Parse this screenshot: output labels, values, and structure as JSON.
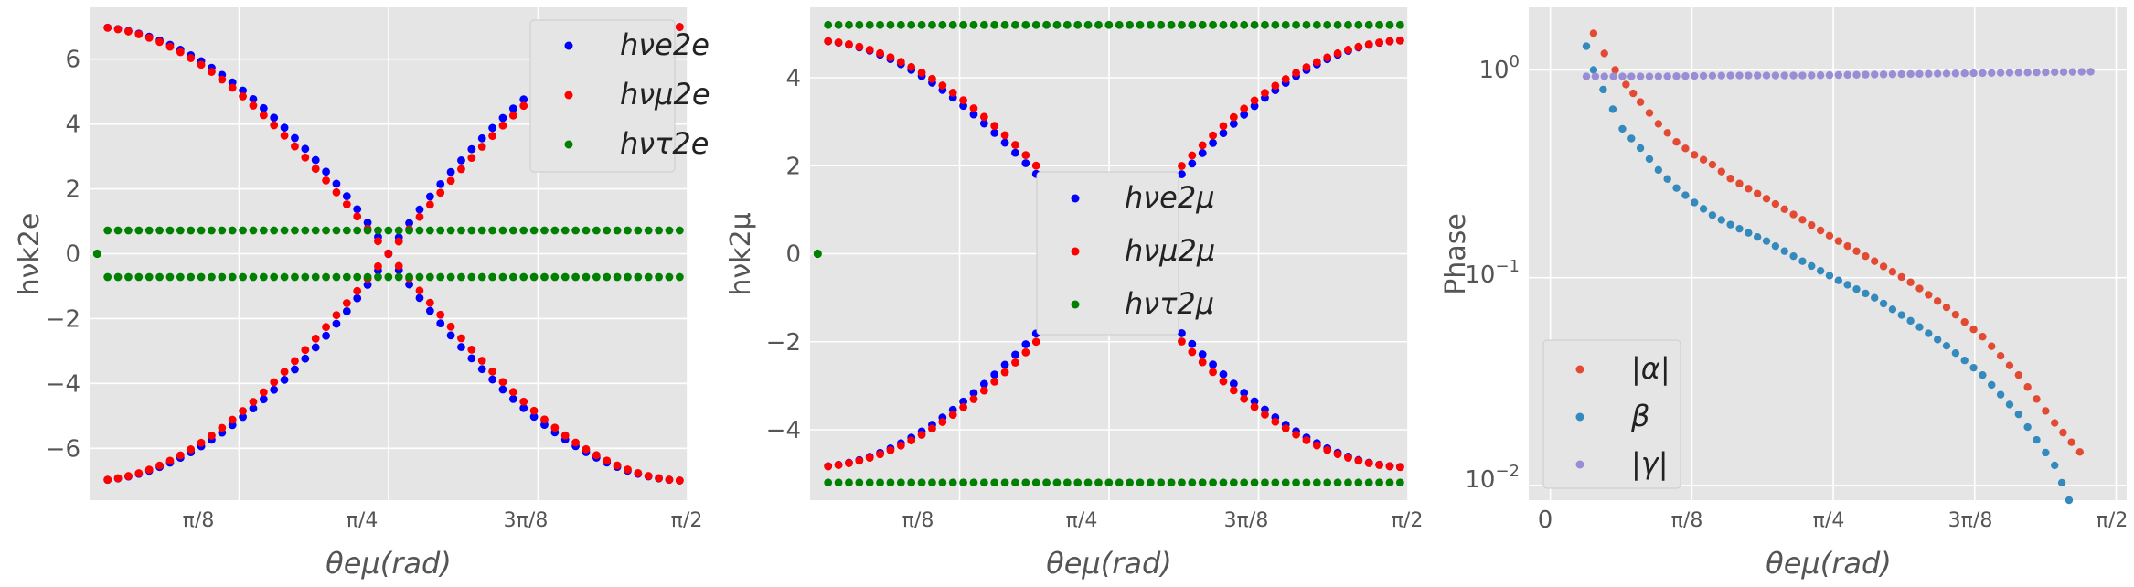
{
  "figure": {
    "xlabel": "θeμ(rad)",
    "xticks": [
      "π/8",
      "π/4",
      "3π/8",
      "π/2"
    ],
    "xticks3": [
      "0",
      "π/8",
      "π/4",
      "3π/8",
      "π/2"
    ]
  },
  "chart_data": [
    {
      "type": "scatter",
      "xlabel": "θeμ(rad)",
      "ylabel": "hνk2e",
      "xlim": [
        0.0,
        1.5708
      ],
      "ylim": [
        -7.6,
        7.6
      ],
      "yticks": [
        -6,
        -4,
        -2,
        0,
        2,
        4,
        6
      ],
      "grid": true,
      "legend_position": "top-right",
      "series": [
        {
          "name": "hνe2e",
          "color": "#0000ff",
          "profile": "a",
          "amp": 7.0
        },
        {
          "name": "hνμ2e",
          "color": "#ff0000",
          "profile": "b",
          "amp": 7.0
        },
        {
          "name": "hντ2e",
          "color": "#008000",
          "profile": "c",
          "amp": 0.72
        }
      ]
    },
    {
      "type": "scatter",
      "xlabel": "θeμ(rad)",
      "ylabel": "hνk2μ",
      "xlim": [
        0.0,
        1.5708
      ],
      "ylim": [
        -5.6,
        5.6
      ],
      "yticks": [
        -4,
        -2,
        0,
        2,
        4
      ],
      "grid": true,
      "legend_position": "center",
      "series": [
        {
          "name": "hνe2μ",
          "color": "#0000ff",
          "profile": "b",
          "amp": 4.85
        },
        {
          "name": "hνμ2μ",
          "color": "#ff0000",
          "profile": "a",
          "amp": 4.85
        },
        {
          "name": "hντ2μ",
          "color": "#008000",
          "profile": "c",
          "amp": 5.2
        }
      ]
    },
    {
      "type": "scatter",
      "xlabel": "θeμ(rad)",
      "ylabel": "Phase",
      "yscale": "log",
      "xlim": [
        -0.06,
        1.6
      ],
      "ylim": [
        0.0085,
        2.0
      ],
      "yticks": [
        "10^0",
        "10^-1",
        "10^-2"
      ],
      "grid": true,
      "legend_position": "bottom-left",
      "series": [
        {
          "name": "|α|",
          "color": "#e24a33",
          "points": [
            [
              0.12,
              1.5
            ],
            [
              0.15,
              1.2
            ],
            [
              0.18,
              1.0
            ],
            [
              0.21,
              0.85
            ],
            [
              0.25,
              0.7
            ],
            [
              0.3,
              0.55
            ],
            [
              0.35,
              0.45
            ],
            [
              0.4,
              0.39
            ],
            [
              0.45,
              0.35
            ],
            [
              0.5,
              0.3
            ],
            [
              0.6,
              0.24
            ],
            [
              0.7,
              0.19
            ],
            [
              0.8,
              0.15
            ],
            [
              0.9,
              0.12
            ],
            [
              1.0,
              0.095
            ],
            [
              1.1,
              0.072
            ],
            [
              1.2,
              0.052
            ],
            [
              1.3,
              0.034
            ],
            [
              1.4,
              0.02
            ],
            [
              1.47,
              0.0145
            ]
          ]
        },
        {
          "name": "β",
          "color": "#348abd",
          "points": [
            [
              0.1,
              1.3
            ],
            [
              0.12,
              1.0
            ],
            [
              0.2,
              0.52
            ],
            [
              0.25,
              0.42
            ],
            [
              0.3,
              0.33
            ],
            [
              0.35,
              0.27
            ],
            [
              0.4,
              0.23
            ],
            [
              0.45,
              0.2
            ],
            [
              0.5,
              0.18
            ],
            [
              0.6,
              0.15
            ],
            [
              0.7,
              0.12
            ],
            [
              0.8,
              0.097
            ],
            [
              0.9,
              0.08
            ],
            [
              1.0,
              0.062
            ],
            [
              1.1,
              0.047
            ],
            [
              1.2,
              0.034
            ],
            [
              1.3,
              0.022
            ],
            [
              1.4,
              0.0125
            ],
            [
              1.44,
              0.0085
            ]
          ]
        },
        {
          "name": "|γ|",
          "color": "#988ed5",
          "points": [
            [
              0.1,
              0.93
            ],
            [
              0.3,
              0.93
            ],
            [
              0.5,
              0.94
            ],
            [
              0.7,
              0.94
            ],
            [
              0.9,
              0.95
            ],
            [
              1.1,
              0.96
            ],
            [
              1.3,
              0.97
            ],
            [
              1.5,
              0.98
            ]
          ]
        }
      ]
    }
  ]
}
